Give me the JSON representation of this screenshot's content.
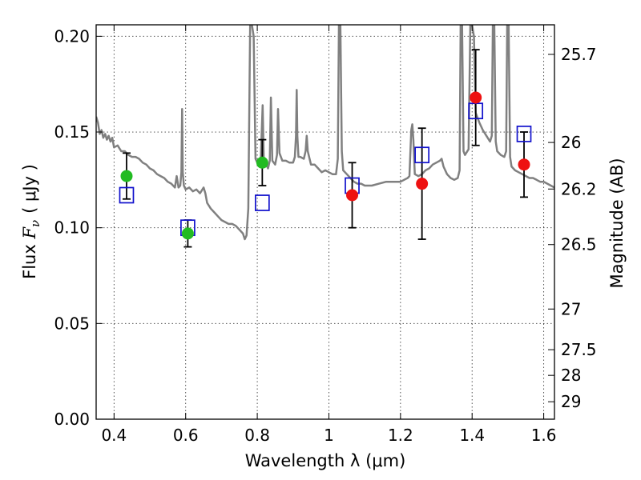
{
  "chart_data": {
    "type": "scatter",
    "xlabel": "Wavelength  λ (μm)",
    "ylabel": "Flux  F_ν ( μJy )",
    "ylabel_parts": {
      "prefix": "Flux  ",
      "symbol": "F",
      "subscript": "ν",
      "unit": "(  μJy )"
    },
    "y2label": "Magnitude (AB)",
    "xlim": [
      0.35,
      1.63
    ],
    "ylim": [
      0.0,
      0.206
    ],
    "grid": true,
    "x_ticks": [
      {
        "value": 0.4,
        "label": "0.4"
      },
      {
        "value": 0.6,
        "label": "0.6"
      },
      {
        "value": 0.8,
        "label": "0.8"
      },
      {
        "value": 1.0,
        "label": "1"
      },
      {
        "value": 1.2,
        "label": "1.2"
      },
      {
        "value": 1.4,
        "label": "1.4"
      },
      {
        "value": 1.6,
        "label": "1.6"
      }
    ],
    "y_ticks": [
      {
        "value": 0.0,
        "label": "0.00"
      },
      {
        "value": 0.05,
        "label": "0.05"
      },
      {
        "value": 0.1,
        "label": "0.10"
      },
      {
        "value": 0.15,
        "label": "0.15"
      },
      {
        "value": 0.2,
        "label": "0.20"
      }
    ],
    "y2_ticks": [
      {
        "value": 25.7,
        "label": "25.7"
      },
      {
        "value": 26.0,
        "label": "26"
      },
      {
        "value": 26.2,
        "label": "26.2"
      },
      {
        "value": 26.5,
        "label": "26.5"
      },
      {
        "value": 27.0,
        "label": "27"
      },
      {
        "value": 27.5,
        "label": "27.5"
      },
      {
        "value": 28.0,
        "label": "28"
      },
      {
        "value": 29.0,
        "label": "29"
      }
    ],
    "colors": {
      "green_points": "#22bb22",
      "red_points": "#ee1111",
      "model_squares": "#1111cc",
      "sed_line": "#808080",
      "error_bars": "#000000"
    },
    "series": [
      {
        "marker": "circle",
        "color": "green",
        "points": [
          {
            "x": 0.435,
            "y": 0.127,
            "yerr": 0.012
          },
          {
            "x": 0.606,
            "y": 0.097,
            "yerr": 0.007
          },
          {
            "x": 0.814,
            "y": 0.134,
            "yerr": 0.012
          }
        ]
      },
      {
        "marker": "circle",
        "color": "red",
        "points": [
          {
            "x": 1.065,
            "y": 0.117,
            "yerr": 0.017
          },
          {
            "x": 1.26,
            "y": 0.123,
            "yerr": 0.029
          },
          {
            "x": 1.41,
            "y": 0.168,
            "yerr": 0.025
          },
          {
            "x": 1.545,
            "y": 0.133,
            "yerr": 0.017
          }
        ]
      },
      {
        "marker": "open-square",
        "color": "blue",
        "points": [
          {
            "x": 0.435,
            "y": 0.117
          },
          {
            "x": 0.606,
            "y": 0.1
          },
          {
            "x": 0.814,
            "y": 0.113
          },
          {
            "x": 1.065,
            "y": 0.122
          },
          {
            "x": 1.26,
            "y": 0.138
          },
          {
            "x": 1.41,
            "y": 0.161
          },
          {
            "x": 1.545,
            "y": 0.149
          }
        ]
      },
      {
        "marker": "line",
        "color": "gray",
        "points": [
          [
            0.35,
            0.158
          ],
          [
            0.355,
            0.155
          ],
          [
            0.36,
            0.149
          ],
          [
            0.365,
            0.151
          ],
          [
            0.37,
            0.147
          ],
          [
            0.375,
            0.149
          ],
          [
            0.38,
            0.146
          ],
          [
            0.385,
            0.148
          ],
          [
            0.39,
            0.145
          ],
          [
            0.395,
            0.147
          ],
          [
            0.4,
            0.142
          ],
          [
            0.41,
            0.143
          ],
          [
            0.42,
            0.14
          ],
          [
            0.43,
            0.14
          ],
          [
            0.44,
            0.138
          ],
          [
            0.45,
            0.137
          ],
          [
            0.46,
            0.137
          ],
          [
            0.47,
            0.136
          ],
          [
            0.48,
            0.134
          ],
          [
            0.49,
            0.133
          ],
          [
            0.5,
            0.131
          ],
          [
            0.51,
            0.13
          ],
          [
            0.52,
            0.128
          ],
          [
            0.53,
            0.127
          ],
          [
            0.54,
            0.126
          ],
          [
            0.55,
            0.124
          ],
          [
            0.56,
            0.123
          ],
          [
            0.57,
            0.121
          ],
          [
            0.575,
            0.127
          ],
          [
            0.58,
            0.121
          ],
          [
            0.585,
            0.122
          ],
          [
            0.588,
            0.129
          ],
          [
            0.59,
            0.162
          ],
          [
            0.592,
            0.129
          ],
          [
            0.595,
            0.122
          ],
          [
            0.6,
            0.12
          ],
          [
            0.61,
            0.121
          ],
          [
            0.62,
            0.119
          ],
          [
            0.63,
            0.12
          ],
          [
            0.64,
            0.118
          ],
          [
            0.65,
            0.121
          ],
          [
            0.655,
            0.118
          ],
          [
            0.66,
            0.113
          ],
          [
            0.67,
            0.11
          ],
          [
            0.68,
            0.108
          ],
          [
            0.69,
            0.106
          ],
          [
            0.7,
            0.104
          ],
          [
            0.71,
            0.103
          ],
          [
            0.72,
            0.102
          ],
          [
            0.73,
            0.102
          ],
          [
            0.74,
            0.101
          ],
          [
            0.75,
            0.099
          ],
          [
            0.76,
            0.097
          ],
          [
            0.765,
            0.094
          ],
          [
            0.77,
            0.096
          ],
          [
            0.775,
            0.11
          ],
          [
            0.78,
            0.206
          ],
          [
            0.785,
            0.206
          ],
          [
            0.79,
            0.2
          ],
          [
            0.795,
            0.136
          ],
          [
            0.8,
            0.134
          ],
          [
            0.805,
            0.133
          ],
          [
            0.81,
            0.137
          ],
          [
            0.815,
            0.164
          ],
          [
            0.818,
            0.137
          ],
          [
            0.825,
            0.133
          ],
          [
            0.83,
            0.131
          ],
          [
            0.835,
            0.135
          ],
          [
            0.838,
            0.168
          ],
          [
            0.842,
            0.135
          ],
          [
            0.85,
            0.133
          ],
          [
            0.855,
            0.138
          ],
          [
            0.858,
            0.162
          ],
          [
            0.862,
            0.139
          ],
          [
            0.87,
            0.135
          ],
          [
            0.88,
            0.135
          ],
          [
            0.89,
            0.134
          ],
          [
            0.9,
            0.134
          ],
          [
            0.905,
            0.137
          ],
          [
            0.908,
            0.148
          ],
          [
            0.91,
            0.172
          ],
          [
            0.912,
            0.148
          ],
          [
            0.915,
            0.137
          ],
          [
            0.92,
            0.137
          ],
          [
            0.93,
            0.136
          ],
          [
            0.935,
            0.14
          ],
          [
            0.938,
            0.148
          ],
          [
            0.941,
            0.14
          ],
          [
            0.95,
            0.133
          ],
          [
            0.96,
            0.133
          ],
          [
            0.97,
            0.131
          ],
          [
            0.98,
            0.129
          ],
          [
            0.99,
            0.13
          ],
          [
            1.0,
            0.129
          ],
          [
            1.01,
            0.128
          ],
          [
            1.02,
            0.128
          ],
          [
            1.025,
            0.136
          ],
          [
            1.028,
            0.206
          ],
          [
            1.032,
            0.206
          ],
          [
            1.036,
            0.14
          ],
          [
            1.04,
            0.13
          ],
          [
            1.05,
            0.128
          ],
          [
            1.06,
            0.126
          ],
          [
            1.07,
            0.124
          ],
          [
            1.08,
            0.123
          ],
          [
            1.09,
            0.123
          ],
          [
            1.1,
            0.122
          ],
          [
            1.12,
            0.122
          ],
          [
            1.14,
            0.123
          ],
          [
            1.16,
            0.124
          ],
          [
            1.18,
            0.124
          ],
          [
            1.2,
            0.124
          ],
          [
            1.22,
            0.126
          ],
          [
            1.225,
            0.127
          ],
          [
            1.23,
            0.151
          ],
          [
            1.233,
            0.154
          ],
          [
            1.236,
            0.146
          ],
          [
            1.24,
            0.128
          ],
          [
            1.25,
            0.127
          ],
          [
            1.26,
            0.128
          ],
          [
            1.27,
            0.13
          ],
          [
            1.28,
            0.131
          ],
          [
            1.29,
            0.133
          ],
          [
            1.3,
            0.134
          ],
          [
            1.31,
            0.135
          ],
          [
            1.315,
            0.136
          ],
          [
            1.32,
            0.132
          ],
          [
            1.33,
            0.128
          ],
          [
            1.34,
            0.126
          ],
          [
            1.35,
            0.125
          ],
          [
            1.36,
            0.126
          ],
          [
            1.365,
            0.13
          ],
          [
            1.368,
            0.206
          ],
          [
            1.372,
            0.206
          ],
          [
            1.376,
            0.14
          ],
          [
            1.38,
            0.138
          ],
          [
            1.39,
            0.141
          ],
          [
            1.395,
            0.206
          ],
          [
            1.4,
            0.206
          ],
          [
            1.405,
            0.2
          ],
          [
            1.41,
            0.16
          ],
          [
            1.42,
            0.155
          ],
          [
            1.43,
            0.151
          ],
          [
            1.44,
            0.148
          ],
          [
            1.45,
            0.145
          ],
          [
            1.455,
            0.148
          ],
          [
            1.458,
            0.206
          ],
          [
            1.462,
            0.206
          ],
          [
            1.466,
            0.145
          ],
          [
            1.47,
            0.14
          ],
          [
            1.48,
            0.138
          ],
          [
            1.49,
            0.137
          ],
          [
            1.495,
            0.14
          ],
          [
            1.498,
            0.206
          ],
          [
            1.502,
            0.206
          ],
          [
            1.506,
            0.137
          ],
          [
            1.51,
            0.132
          ],
          [
            1.52,
            0.13
          ],
          [
            1.53,
            0.129
          ],
          [
            1.54,
            0.128
          ],
          [
            1.55,
            0.127
          ],
          [
            1.56,
            0.126
          ],
          [
            1.57,
            0.126
          ],
          [
            1.58,
            0.125
          ],
          [
            1.59,
            0.124
          ],
          [
            1.6,
            0.124
          ],
          [
            1.61,
            0.123
          ],
          [
            1.62,
            0.122
          ],
          [
            1.63,
            0.121
          ]
        ]
      }
    ]
  }
}
